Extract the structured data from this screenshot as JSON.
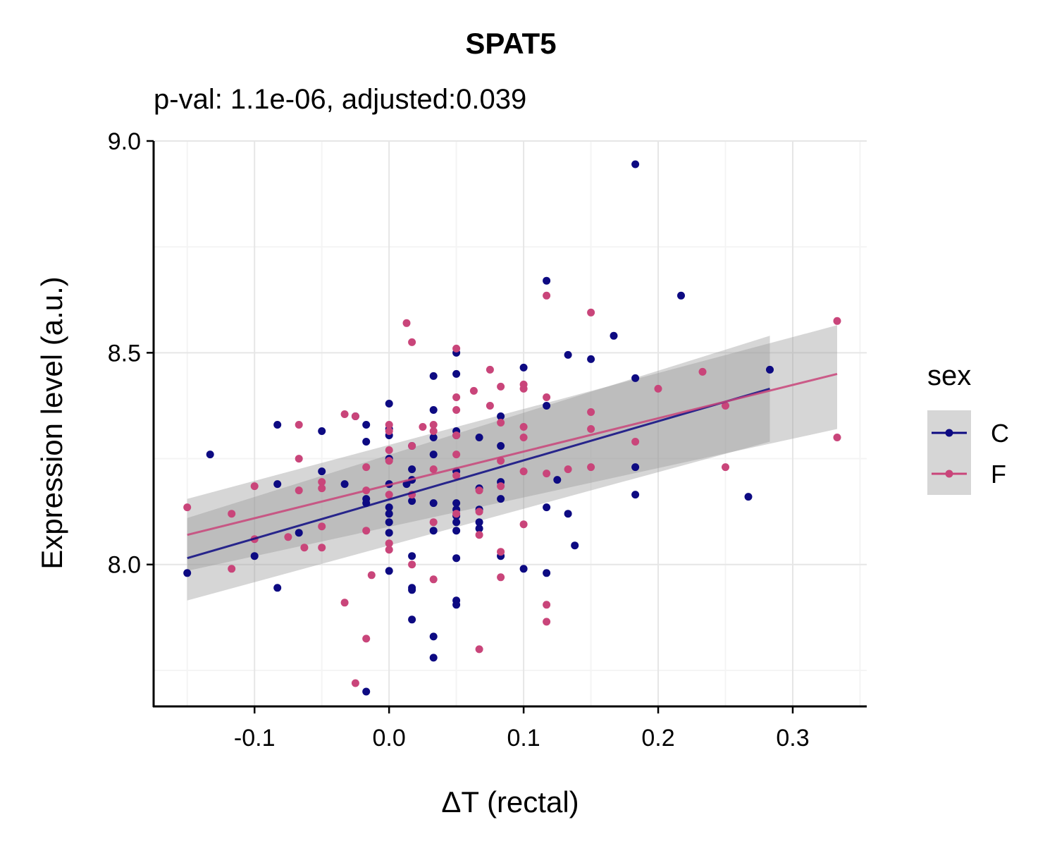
{
  "chart_data": {
    "type": "scatter",
    "title": "SPAT5",
    "subtitle": "p-val: 1.1e-06,  adjusted:0.039",
    "xlabel": "ΔT (rectal)",
    "ylabel": "Expression level (a.u.)",
    "xlim": [
      -0.175,
      0.355
    ],
    "ylim": [
      7.665,
      9.0
    ],
    "x_ticks": [
      -0.1,
      0.0,
      0.1,
      0.2,
      0.3
    ],
    "x_tick_labels": [
      "-0.1",
      "0.0",
      "0.1",
      "0.2",
      "0.3"
    ],
    "y_ticks": [
      8.0,
      8.5,
      9.0
    ],
    "y_tick_labels": [
      "8.0",
      "8.5",
      "9.0"
    ],
    "grid": true,
    "legend": {
      "title": "sex",
      "position": "right",
      "entries": [
        {
          "label": "C",
          "color": "#0d0a82"
        },
        {
          "label": "F",
          "color": "#c9457a"
        }
      ]
    },
    "series": [
      {
        "name": "C",
        "color": "#0d0a82",
        "fit": {
          "x": [
            -0.15,
            0.283
          ],
          "y": [
            8.015,
            8.415
          ]
        },
        "ci": {
          "x": [
            -0.15,
            0.283
          ],
          "lower": [
            7.915,
            8.29
          ],
          "upper": [
            8.11,
            8.54
          ]
        },
        "points": [
          [
            -0.15,
            7.98
          ],
          [
            -0.133,
            8.26
          ],
          [
            -0.1,
            8.02
          ],
          [
            -0.083,
            8.33
          ],
          [
            -0.083,
            8.19
          ],
          [
            -0.083,
            7.945
          ],
          [
            -0.067,
            8.075
          ],
          [
            -0.05,
            8.315
          ],
          [
            -0.05,
            8.22
          ],
          [
            -0.033,
            8.19
          ],
          [
            -0.025,
            8.35
          ],
          [
            -0.017,
            8.33
          ],
          [
            -0.017,
            8.29
          ],
          [
            -0.017,
            8.155
          ],
          [
            -0.017,
            8.145
          ],
          [
            -0.017,
            7.7
          ],
          [
            0.0,
            8.38
          ],
          [
            0.0,
            8.32
          ],
          [
            0.0,
            8.305
          ],
          [
            0.0,
            8.25
          ],
          [
            0.0,
            8.19
          ],
          [
            0.0,
            8.135
          ],
          [
            0.0,
            8.12
          ],
          [
            0.0,
            8.1
          ],
          [
            0.0,
            8.075
          ],
          [
            0.0,
            7.985
          ],
          [
            0.013,
            8.19
          ],
          [
            0.017,
            8.28
          ],
          [
            0.017,
            8.225
          ],
          [
            0.017,
            8.2
          ],
          [
            0.017,
            8.15
          ],
          [
            0.017,
            8.02
          ],
          [
            0.017,
            7.945
          ],
          [
            0.017,
            7.94
          ],
          [
            0.017,
            7.87
          ],
          [
            0.033,
            8.445
          ],
          [
            0.033,
            8.365
          ],
          [
            0.033,
            8.3
          ],
          [
            0.033,
            8.26
          ],
          [
            0.033,
            8.145
          ],
          [
            0.033,
            8.08
          ],
          [
            0.033,
            7.83
          ],
          [
            0.033,
            7.78
          ],
          [
            0.05,
            8.5
          ],
          [
            0.05,
            8.45
          ],
          [
            0.05,
            8.315
          ],
          [
            0.05,
            8.305
          ],
          [
            0.05,
            8.22
          ],
          [
            0.05,
            8.145
          ],
          [
            0.05,
            8.13
          ],
          [
            0.05,
            8.115
          ],
          [
            0.05,
            8.1
          ],
          [
            0.05,
            8.08
          ],
          [
            0.05,
            8.015
          ],
          [
            0.05,
            7.915
          ],
          [
            0.05,
            7.905
          ],
          [
            0.067,
            8.3
          ],
          [
            0.067,
            8.18
          ],
          [
            0.067,
            8.13
          ],
          [
            0.067,
            8.1
          ],
          [
            0.067,
            8.085
          ],
          [
            0.083,
            8.35
          ],
          [
            0.083,
            8.28
          ],
          [
            0.083,
            8.195
          ],
          [
            0.083,
            8.155
          ],
          [
            0.083,
            8.02
          ],
          [
            0.1,
            8.465
          ],
          [
            0.1,
            7.99
          ],
          [
            0.117,
            8.67
          ],
          [
            0.117,
            8.375
          ],
          [
            0.117,
            8.135
          ],
          [
            0.117,
            7.98
          ],
          [
            0.125,
            8.2
          ],
          [
            0.133,
            8.495
          ],
          [
            0.133,
            8.12
          ],
          [
            0.138,
            8.045
          ],
          [
            0.15,
            8.485
          ],
          [
            0.167,
            8.54
          ],
          [
            0.183,
            8.945
          ],
          [
            0.183,
            8.44
          ],
          [
            0.183,
            8.23
          ],
          [
            0.183,
            8.165
          ],
          [
            0.217,
            8.635
          ],
          [
            0.267,
            8.16
          ],
          [
            0.283,
            8.46
          ]
        ]
      },
      {
        "name": "F",
        "color": "#c9457a",
        "fit": {
          "x": [
            -0.15,
            0.333
          ],
          "y": [
            8.07,
            8.45
          ]
        },
        "ci": {
          "x": [
            -0.15,
            0.333
          ],
          "lower": [
            7.985,
            8.32
          ],
          "upper": [
            8.155,
            8.565
          ]
        },
        "points": [
          [
            -0.15,
            8.135
          ],
          [
            -0.117,
            8.12
          ],
          [
            -0.117,
            7.99
          ],
          [
            -0.1,
            8.185
          ],
          [
            -0.1,
            8.06
          ],
          [
            -0.075,
            8.065
          ],
          [
            -0.067,
            8.33
          ],
          [
            -0.067,
            8.25
          ],
          [
            -0.067,
            8.175
          ],
          [
            -0.063,
            8.04
          ],
          [
            -0.05,
            8.195
          ],
          [
            -0.05,
            8.18
          ],
          [
            -0.05,
            8.09
          ],
          [
            -0.05,
            8.04
          ],
          [
            -0.033,
            8.355
          ],
          [
            -0.033,
            7.91
          ],
          [
            -0.025,
            8.35
          ],
          [
            -0.025,
            7.72
          ],
          [
            -0.017,
            8.23
          ],
          [
            -0.017,
            8.175
          ],
          [
            -0.017,
            8.08
          ],
          [
            -0.017,
            7.825
          ],
          [
            -0.013,
            7.975
          ],
          [
            0.0,
            8.33
          ],
          [
            0.0,
            8.315
          ],
          [
            0.0,
            8.27
          ],
          [
            0.0,
            8.245
          ],
          [
            0.0,
            8.165
          ],
          [
            0.0,
            8.05
          ],
          [
            0.0,
            8.035
          ],
          [
            0.013,
            8.57
          ],
          [
            0.017,
            8.525
          ],
          [
            0.017,
            8.28
          ],
          [
            0.017,
            8.165
          ],
          [
            0.017,
            8.0
          ],
          [
            0.025,
            8.325
          ],
          [
            0.033,
            8.33
          ],
          [
            0.033,
            8.315
          ],
          [
            0.033,
            8.225
          ],
          [
            0.033,
            8.1
          ],
          [
            0.033,
            7.965
          ],
          [
            0.05,
            8.51
          ],
          [
            0.05,
            8.395
          ],
          [
            0.05,
            8.365
          ],
          [
            0.05,
            8.305
          ],
          [
            0.05,
            8.26
          ],
          [
            0.05,
            8.21
          ],
          [
            0.05,
            8.12
          ],
          [
            0.063,
            8.41
          ],
          [
            0.067,
            8.175
          ],
          [
            0.067,
            8.125
          ],
          [
            0.067,
            8.07
          ],
          [
            0.067,
            7.8
          ],
          [
            0.075,
            8.46
          ],
          [
            0.075,
            8.375
          ],
          [
            0.083,
            8.42
          ],
          [
            0.083,
            8.335
          ],
          [
            0.083,
            8.245
          ],
          [
            0.083,
            8.185
          ],
          [
            0.083,
            8.03
          ],
          [
            0.083,
            7.97
          ],
          [
            0.1,
            8.425
          ],
          [
            0.1,
            8.415
          ],
          [
            0.1,
            8.325
          ],
          [
            0.1,
            8.3
          ],
          [
            0.1,
            8.22
          ],
          [
            0.1,
            8.095
          ],
          [
            0.117,
            8.635
          ],
          [
            0.117,
            8.395
          ],
          [
            0.117,
            8.215
          ],
          [
            0.117,
            7.905
          ],
          [
            0.117,
            7.865
          ],
          [
            0.133,
            8.225
          ],
          [
            0.15,
            8.595
          ],
          [
            0.15,
            8.36
          ],
          [
            0.15,
            8.32
          ],
          [
            0.15,
            8.23
          ],
          [
            0.183,
            8.29
          ],
          [
            0.2,
            8.415
          ],
          [
            0.233,
            8.455
          ],
          [
            0.25,
            8.375
          ],
          [
            0.25,
            8.23
          ],
          [
            0.333,
            8.575
          ],
          [
            0.333,
            8.3
          ]
        ]
      }
    ]
  }
}
